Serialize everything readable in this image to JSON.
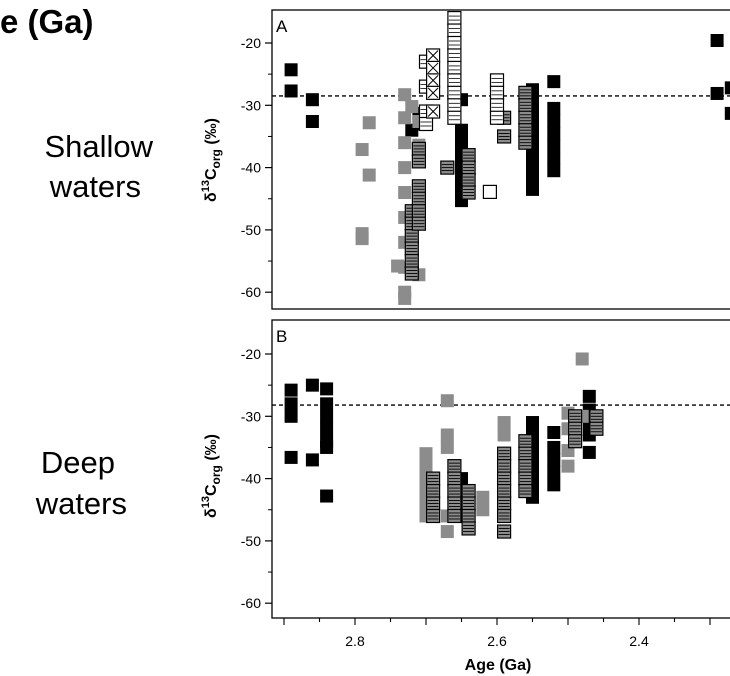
{
  "header": {
    "title_fragment": "e (Ga)"
  },
  "side_labels": {
    "shallow": [
      "Shallow",
      "waters"
    ],
    "deep": [
      "Deep",
      "waters"
    ]
  },
  "x_axis": {
    "label": "Age (Ga)",
    "ticks": [
      "2.8",
      "2.6",
      "2.4"
    ]
  },
  "colors": {
    "black": "#000000",
    "gray": "#8c8c8c",
    "open": "#ffffff",
    "border": "#000000"
  },
  "chart_data": [
    {
      "type": "scatter",
      "panel_label": "A",
      "ylabel_main": "δ",
      "ylabel_sup": "13",
      "ylabel_sub": "C",
      "ylabel_subsub": "org",
      "ylabel_unit": " (‰)",
      "xlim": [
        2.9,
        2.27
      ],
      "ylim": [
        -62.5,
        -15.5
      ],
      "yticks": [
        "-20",
        "-30",
        "-40",
        "-50",
        "-60"
      ],
      "reference_line": -28.5,
      "series": [
        {
          "style": "black",
          "points": [
            [
              2.89,
              -24.3
            ],
            [
              2.89,
              -27.7
            ],
            [
              2.86,
              -29.1
            ],
            [
              2.86,
              -32.6
            ],
            [
              2.72,
              -34
            ],
            [
              2.71,
              -33
            ],
            [
              2.71,
              -31.3
            ],
            [
              2.65,
              -29.1
            ],
            [
              2.65,
              -34
            ],
            [
              2.65,
              -36
            ],
            [
              2.65,
              -38
            ],
            [
              2.65,
              -40
            ],
            [
              2.65,
              -42
            ],
            [
              2.65,
              -44
            ],
            [
              2.65,
              -45.3
            ],
            [
              2.55,
              -27.5
            ],
            [
              2.55,
              -29.5
            ],
            [
              2.55,
              -31.5
            ],
            [
              2.55,
              -33.5
            ],
            [
              2.55,
              -35.5
            ],
            [
              2.55,
              -37.5
            ],
            [
              2.55,
              -39.5
            ],
            [
              2.55,
              -41.5
            ],
            [
              2.55,
              -43.5
            ],
            [
              2.52,
              -26.2
            ],
            [
              2.52,
              -30.5
            ],
            [
              2.52,
              -32.5
            ],
            [
              2.52,
              -34.5
            ],
            [
              2.52,
              -36.5
            ],
            [
              2.52,
              -38.5
            ],
            [
              2.52,
              -40.5
            ],
            [
              2.29,
              -19.6
            ],
            [
              2.29,
              -28.1
            ],
            [
              2.27,
              -27.2
            ],
            [
              2.27,
              -31.3
            ]
          ]
        },
        {
          "style": "gray",
          "points": [
            [
              2.78,
              -32.8
            ],
            [
              2.79,
              -37.1
            ],
            [
              2.78,
              -41.2
            ],
            [
              2.79,
              -50.6
            ],
            [
              2.79,
              -51.4
            ],
            [
              2.73,
              -28.3
            ],
            [
              2.73,
              -32
            ],
            [
              2.73,
              -36
            ],
            [
              2.73,
              -40
            ],
            [
              2.73,
              -44
            ],
            [
              2.73,
              -48
            ],
            [
              2.73,
              -52
            ],
            [
              2.73,
              -56
            ],
            [
              2.73,
              -60
            ],
            [
              2.73,
              -61
            ],
            [
              2.74,
              -55.8
            ],
            [
              2.71,
              -57.2
            ],
            [
              2.71,
              -32.6
            ],
            [
              2.72,
              -30.2
            ],
            [
              2.71,
              -36.4
            ]
          ]
        },
        {
          "style": "gray-hatched",
          "points": [
            [
              2.72,
              -47
            ],
            [
              2.72,
              -49
            ],
            [
              2.72,
              -51
            ],
            [
              2.72,
              -53
            ],
            [
              2.72,
              -55
            ],
            [
              2.72,
              -57
            ],
            [
              2.71,
              -37
            ],
            [
              2.71,
              -39
            ],
            [
              2.71,
              -43
            ],
            [
              2.71,
              -45
            ],
            [
              2.71,
              -47
            ],
            [
              2.71,
              -49
            ],
            [
              2.64,
              -38
            ],
            [
              2.64,
              -40
            ],
            [
              2.64,
              -42
            ],
            [
              2.64,
              -44
            ],
            [
              2.67,
              -40
            ],
            [
              2.59,
              -32
            ],
            [
              2.59,
              -35
            ],
            [
              2.56,
              -28
            ],
            [
              2.56,
              -30
            ],
            [
              2.56,
              -32
            ],
            [
              2.56,
              -34
            ],
            [
              2.56,
              -36
            ]
          ]
        },
        {
          "style": "open-hatched",
          "points": [
            [
              2.66,
              -16
            ],
            [
              2.66,
              -18
            ],
            [
              2.66,
              -20
            ],
            [
              2.66,
              -22
            ],
            [
              2.66,
              -24
            ],
            [
              2.66,
              -26
            ],
            [
              2.66,
              -28
            ],
            [
              2.66,
              -30
            ],
            [
              2.66,
              -32
            ],
            [
              2.6,
              -26
            ],
            [
              2.6,
              -28
            ],
            [
              2.6,
              -30
            ],
            [
              2.6,
              -32
            ],
            [
              2.7,
              -23
            ],
            [
              2.7,
              -27
            ],
            [
              2.7,
              -31
            ],
            [
              2.7,
              -33
            ]
          ]
        },
        {
          "style": "open-crossed",
          "points": [
            [
              2.69,
              -22
            ],
            [
              2.69,
              -24
            ],
            [
              2.69,
              -26
            ],
            [
              2.69,
              -28
            ],
            [
              2.69,
              -31
            ]
          ]
        },
        {
          "style": "open",
          "points": [
            [
              2.61,
              -43.9
            ]
          ]
        }
      ]
    },
    {
      "type": "scatter",
      "panel_label": "B",
      "ylabel_main": "δ",
      "ylabel_sup": "13",
      "ylabel_sub": "C",
      "ylabel_subsub": "org",
      "ylabel_unit": " (‰)",
      "xlim": [
        2.9,
        2.27
      ],
      "ylim": [
        -63.5,
        -17
      ],
      "yticks": [
        "-20",
        "-30",
        "-40",
        "-50",
        "-60"
      ],
      "reference_line": -28.2,
      "series": [
        {
          "style": "black",
          "points": [
            [
              2.89,
              -25.8
            ],
            [
              2.89,
              -28
            ],
            [
              2.89,
              -30
            ],
            [
              2.89,
              -36.6
            ],
            [
              2.86,
              -25
            ],
            [
              2.86,
              -37
            ],
            [
              2.84,
              -25.6
            ],
            [
              2.84,
              -28
            ],
            [
              2.84,
              -30
            ],
            [
              2.84,
              -32
            ],
            [
              2.84,
              -34
            ],
            [
              2.84,
              -35
            ],
            [
              2.84,
              -42.8
            ],
            [
              2.65,
              -40
            ],
            [
              2.65,
              -42
            ],
            [
              2.65,
              -44
            ],
            [
              2.55,
              -31
            ],
            [
              2.55,
              -33
            ],
            [
              2.55,
              -35
            ],
            [
              2.55,
              -37
            ],
            [
              2.55,
              -39
            ],
            [
              2.55,
              -41
            ],
            [
              2.55,
              -43
            ],
            [
              2.52,
              -32.6
            ],
            [
              2.52,
              -35
            ],
            [
              2.52,
              -37
            ],
            [
              2.52,
              -39
            ],
            [
              2.52,
              -41
            ],
            [
              2.47,
              -26.8
            ],
            [
              2.47,
              -29
            ],
            [
              2.47,
              -31
            ],
            [
              2.47,
              -33
            ],
            [
              2.47,
              -35.8
            ]
          ]
        },
        {
          "style": "gray",
          "points": [
            [
              2.7,
              -36
            ],
            [
              2.7,
              -38
            ],
            [
              2.7,
              -40
            ],
            [
              2.7,
              -42
            ],
            [
              2.7,
              -44
            ],
            [
              2.7,
              -46
            ],
            [
              2.67,
              -27.5
            ],
            [
              2.67,
              -33
            ],
            [
              2.67,
              -35
            ],
            [
              2.67,
              -46
            ],
            [
              2.67,
              -48.5
            ],
            [
              2.62,
              -43
            ],
            [
              2.62,
              -45
            ],
            [
              2.59,
              -31
            ],
            [
              2.59,
              -33
            ],
            [
              2.5,
              -29.5
            ],
            [
              2.5,
              -32
            ],
            [
              2.5,
              -35.5
            ],
            [
              2.5,
              -38
            ],
            [
              2.48,
              -20.8
            ],
            [
              2.48,
              -30
            ]
          ]
        },
        {
          "style": "gray-hatched",
          "points": [
            [
              2.69,
              -40
            ],
            [
              2.69,
              -42
            ],
            [
              2.69,
              -44
            ],
            [
              2.69,
              -46
            ],
            [
              2.66,
              -38
            ],
            [
              2.66,
              -40
            ],
            [
              2.66,
              -42
            ],
            [
              2.66,
              -44
            ],
            [
              2.66,
              -46
            ],
            [
              2.64,
              -42
            ],
            [
              2.64,
              -44
            ],
            [
              2.64,
              -46
            ],
            [
              2.64,
              -48
            ],
            [
              2.59,
              -36
            ],
            [
              2.59,
              -38
            ],
            [
              2.59,
              -40
            ],
            [
              2.59,
              -42
            ],
            [
              2.59,
              -44
            ],
            [
              2.59,
              -46
            ],
            [
              2.59,
              -48.5
            ],
            [
              2.56,
              -34
            ],
            [
              2.56,
              -36
            ],
            [
              2.56,
              -38
            ],
            [
              2.56,
              -40
            ],
            [
              2.56,
              -42
            ],
            [
              2.49,
              -30
            ],
            [
              2.49,
              -32
            ],
            [
              2.49,
              -34
            ],
            [
              2.46,
              -30
            ],
            [
              2.46,
              -32
            ]
          ]
        }
      ]
    }
  ]
}
